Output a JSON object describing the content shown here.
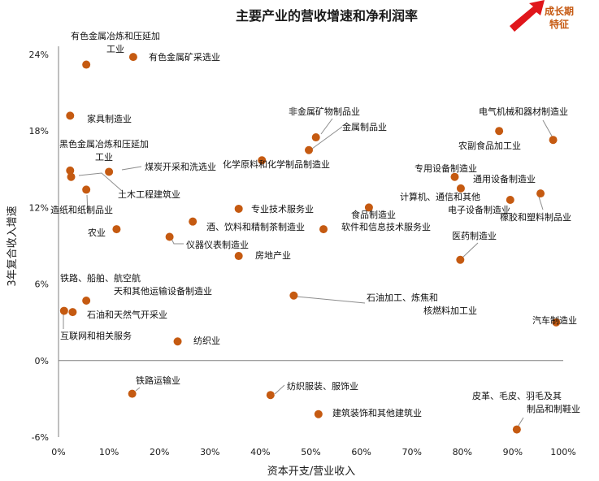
{
  "chart_data": {
    "type": "scatter",
    "title": "主要产业的营收增速和净利润率",
    "xlabel": "资本开支/营业收入",
    "ylabel": "3年复合收入增速",
    "x_ticks": [
      "0%",
      "10%",
      "20%",
      "30%",
      "40%",
      "50%",
      "60%",
      "70%",
      "80%",
      "90%",
      "100%"
    ],
    "y_ticks": [
      "-6%",
      "0%",
      "6%",
      "12%",
      "18%",
      "24%"
    ],
    "xlim": [
      0,
      100
    ],
    "ylim": [
      -6,
      24
    ],
    "grid": false,
    "point_color": "#c55a11",
    "badge": {
      "line1": "成长期",
      "line2": "特征",
      "color": "#c65911",
      "arrow_color": "#e0161b"
    },
    "points": [
      {
        "label": "有色金属冶炼和压延加工业",
        "x": 5.5,
        "y": 23.2
      },
      {
        "label": "有色金属矿采选业",
        "x": 14.8,
        "y": 23.8
      },
      {
        "label": "家具制造业",
        "x": 2.3,
        "y": 19.2
      },
      {
        "label": "黑色金属冶炼和压延加工业",
        "x": 2.3,
        "y": 14.9
      },
      {
        "label": "煤炭开采和洗选业",
        "x": 10,
        "y": 14.8
      },
      {
        "label": "土木工程建筑业",
        "x": 2.5,
        "y": 14.4
      },
      {
        "label": "造纸和纸制品业",
        "x": 5.5,
        "y": 13.4
      },
      {
        "label": "农业",
        "x": 11.5,
        "y": 10.3
      },
      {
        "label": "仪器仪表制造业",
        "x": 22,
        "y": 9.7
      },
      {
        "label": "酒、饮料和精制茶制造业",
        "x": 26.6,
        "y": 10.9
      },
      {
        "label": "专业技术服务业",
        "x": 35.7,
        "y": 11.9
      },
      {
        "label": "房地产业",
        "x": 35.7,
        "y": 8.2
      },
      {
        "label": "化学原料和化学制品制造业",
        "x": 40.3,
        "y": 15.7
      },
      {
        "label": "非金属矿物制品业",
        "x": 51,
        "y": 17.5
      },
      {
        "label": "金属制品业",
        "x": 49.6,
        "y": 16.5
      },
      {
        "label": "软件和信息技术服务业",
        "x": 52.5,
        "y": 10.3
      },
      {
        "label": "食品制造业",
        "x": 61.5,
        "y": 12
      },
      {
        "label": "专用设备制造业",
        "x": 78.5,
        "y": 14.4
      },
      {
        "label": "通用设备制造业",
        "x": 79.7,
        "y": 13.5
      },
      {
        "label": "计算机、通信和其他电子设备制造业",
        "x": 89.5,
        "y": 12.6
      },
      {
        "label": "医药制造业",
        "x": 79.6,
        "y": 7.9
      },
      {
        "label": "电气机械和器材制造业",
        "x": 98,
        "y": 17.3
      },
      {
        "label": "农副食品加工业",
        "x": 87.3,
        "y": 18
      },
      {
        "label": "橡胶和塑料制品业",
        "x": 95.5,
        "y": 13.1
      },
      {
        "label": "汽车制造业",
        "x": 98.6,
        "y": 3
      },
      {
        "label": "铁路、船舶、航空航天和其他运输设备制造业",
        "x": 5.5,
        "y": 4.7
      },
      {
        "label": "石油和天然气开采业",
        "x": 2.8,
        "y": 3.8
      },
      {
        "label": "互联网和相关服务",
        "x": 1.1,
        "y": 3.9
      },
      {
        "label": "石油加工、炼焦和核燃料加工业",
        "x": 46.6,
        "y": 5.1
      },
      {
        "label": "纺织业",
        "x": 23.6,
        "y": 1.5
      },
      {
        "label": "铁路运输业",
        "x": 14.6,
        "y": -2.6
      },
      {
        "label": "纺织服装、服饰业",
        "x": 42,
        "y": -2.7
      },
      {
        "label": "建筑装饰和其他建筑业",
        "x": 51.5,
        "y": -4.2
      },
      {
        "label": "皮革、毛皮、羽毛及其制品和制鞋业",
        "x": 90.8,
        "y": -5.4
      }
    ]
  }
}
